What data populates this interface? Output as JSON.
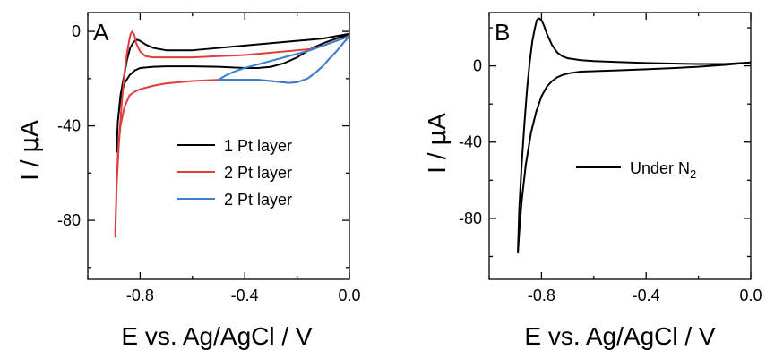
{
  "chart_data": [
    {
      "type": "line",
      "panel_label": "A",
      "xlabel": "E vs. Ag/AgCl / V",
      "ylabel": "I / μA",
      "ylabel_parts": [
        "I / ",
        "μ",
        "A"
      ],
      "xlim": [
        -1.0,
        0.0
      ],
      "ylim": [
        -105,
        8
      ],
      "xticks": [
        -0.8,
        -0.4,
        0.0
      ],
      "xtick_labels": [
        "-0.8",
        "-0.4",
        "0.0"
      ],
      "x_minor_ticks": [
        -1.0,
        -0.6,
        -0.2
      ],
      "yticks": [
        0,
        -40,
        -80
      ],
      "ytick_labels": [
        "0",
        "-40",
        "-80"
      ],
      "y_minor_ticks": [
        -20,
        -60,
        -100
      ],
      "grid": false,
      "legend_position": "center-right",
      "series": [
        {
          "name": "1 Pt layer",
          "color": "#000000",
          "x": [
            -0.89,
            -0.885,
            -0.875,
            -0.86,
            -0.85,
            -0.838,
            -0.825,
            -0.812,
            -0.8,
            -0.78,
            -0.75,
            -0.7,
            -0.6,
            -0.5,
            -0.4,
            -0.3,
            -0.2,
            -0.15,
            -0.1,
            -0.05,
            0.0,
            -0.02,
            -0.05,
            -0.1,
            -0.15,
            -0.2,
            -0.25,
            -0.3,
            -0.35,
            -0.4,
            -0.5,
            -0.6,
            -0.7,
            -0.75,
            -0.8,
            -0.82,
            -0.84,
            -0.86,
            -0.875,
            -0.885,
            -0.89
          ],
          "y": [
            -51,
            -38,
            -27,
            -18,
            -12,
            -7,
            -4.5,
            -3.5,
            -4,
            -5.5,
            -7,
            -8,
            -8,
            -7,
            -6,
            -5,
            -4,
            -3.5,
            -3,
            -2,
            -1,
            -2,
            -3,
            -5,
            -7.5,
            -11,
            -13.5,
            -15,
            -15.5,
            -15.5,
            -15,
            -14.8,
            -14.8,
            -15,
            -15.5,
            -16.5,
            -18.5,
            -22,
            -28,
            -38,
            -50
          ]
        },
        {
          "name": "2 Pt layer",
          "color": "#e03c3c",
          "x": [
            -0.895,
            -0.89,
            -0.88,
            -0.87,
            -0.86,
            -0.85,
            -0.842,
            -0.836,
            -0.83,
            -0.822,
            -0.815,
            -0.8,
            -0.78,
            -0.75,
            -0.7,
            -0.6,
            -0.5,
            -0.4,
            -0.3,
            -0.2,
            -0.15,
            -0.1,
            -0.05,
            0.0,
            -0.02,
            -0.05,
            -0.08,
            -0.1,
            -0.13,
            -0.16,
            -0.2,
            -0.23,
            -0.26,
            -0.3,
            -0.35,
            -0.4,
            -0.5,
            -0.6,
            -0.7,
            -0.75,
            -0.8,
            -0.82,
            -0.84,
            -0.86,
            -0.875,
            -0.885,
            -0.89,
            -0.895
          ],
          "y": [
            -85,
            -66,
            -45,
            -30,
            -18,
            -9,
            -4,
            -1,
            0,
            -1.5,
            -5,
            -8.5,
            -10.5,
            -11,
            -11,
            -11,
            -10.5,
            -10,
            -9,
            -8,
            -7.5,
            -6,
            -4,
            -2,
            -4.5,
            -8.5,
            -12,
            -14.5,
            -17.5,
            -20,
            -21.5,
            -21.8,
            -21.5,
            -21,
            -20.5,
            -20.5,
            -20.5,
            -21,
            -22,
            -23,
            -24.5,
            -25.5,
            -27,
            -32,
            -40,
            -52,
            -66,
            -87
          ]
        },
        {
          "name": "2 Pt layer",
          "color": "#3a7fd0",
          "x": [
            -0.5,
            -0.47,
            -0.44,
            -0.4,
            -0.35,
            -0.3,
            -0.25,
            -0.2,
            -0.15,
            -0.1,
            -0.05,
            0.0,
            -0.02,
            -0.05,
            -0.08,
            -0.1,
            -0.13,
            -0.16,
            -0.2,
            -0.23,
            -0.26,
            -0.3,
            -0.35,
            -0.4,
            -0.45,
            -0.5
          ],
          "y": [
            -20.5,
            -18.5,
            -17,
            -15.5,
            -14,
            -12.5,
            -11,
            -9.5,
            -8,
            -6,
            -4,
            -2,
            -4.5,
            -8.5,
            -12,
            -14.5,
            -17.5,
            -20,
            -21.5,
            -21.8,
            -21.5,
            -21,
            -20.5,
            -20.5,
            -20.5,
            -20.5
          ]
        }
      ]
    },
    {
      "type": "line",
      "panel_label": "B",
      "xlabel": "E vs. Ag/AgCl / V",
      "ylabel": "I / μA",
      "ylabel_parts": [
        "I / ",
        "μ",
        "A"
      ],
      "xlim": [
        -1.0,
        0.0
      ],
      "ylim": [
        -112,
        28
      ],
      "xticks": [
        -0.8,
        -0.4,
        0.0
      ],
      "xtick_labels": [
        "-0.8",
        "-0.4",
        "0.0"
      ],
      "x_minor_ticks": [
        -1.0,
        -0.6,
        -0.2
      ],
      "yticks": [
        0,
        -40,
        -80
      ],
      "ytick_labels": [
        "0",
        "-40",
        "-80"
      ],
      "y_minor_ticks": [
        20,
        -20,
        -60,
        -100
      ],
      "grid": false,
      "legend_position": "center-right",
      "legend_text": "Under N",
      "legend_subscript": "2",
      "series": [
        {
          "name": "Under N2",
          "color": "#000000",
          "x": [
            -0.89,
            -0.885,
            -0.875,
            -0.865,
            -0.855,
            -0.845,
            -0.835,
            -0.825,
            -0.818,
            -0.81,
            -0.8,
            -0.79,
            -0.78,
            -0.76,
            -0.74,
            -0.72,
            -0.7,
            -0.65,
            -0.6,
            -0.5,
            -0.4,
            -0.3,
            -0.2,
            -0.1,
            0.0,
            -0.1,
            -0.2,
            -0.3,
            -0.4,
            -0.5,
            -0.6,
            -0.65,
            -0.7,
            -0.72,
            -0.74,
            -0.76,
            -0.78,
            -0.8,
            -0.82,
            -0.84,
            -0.86,
            -0.875,
            -0.885,
            -0.89
          ],
          "y": [
            -97,
            -75,
            -50,
            -30,
            -12,
            2,
            13,
            20,
            24,
            25,
            24,
            21,
            17,
            11,
            7,
            5,
            4,
            3,
            2.5,
            2,
            1.5,
            1.2,
            1,
            1,
            1.8,
            0.5,
            -0.5,
            -1.2,
            -1.8,
            -2.3,
            -2.8,
            -3,
            -4,
            -4.8,
            -6,
            -8,
            -11,
            -16,
            -24,
            -35,
            -52,
            -70,
            -87,
            -98
          ]
        }
      ]
    }
  ]
}
